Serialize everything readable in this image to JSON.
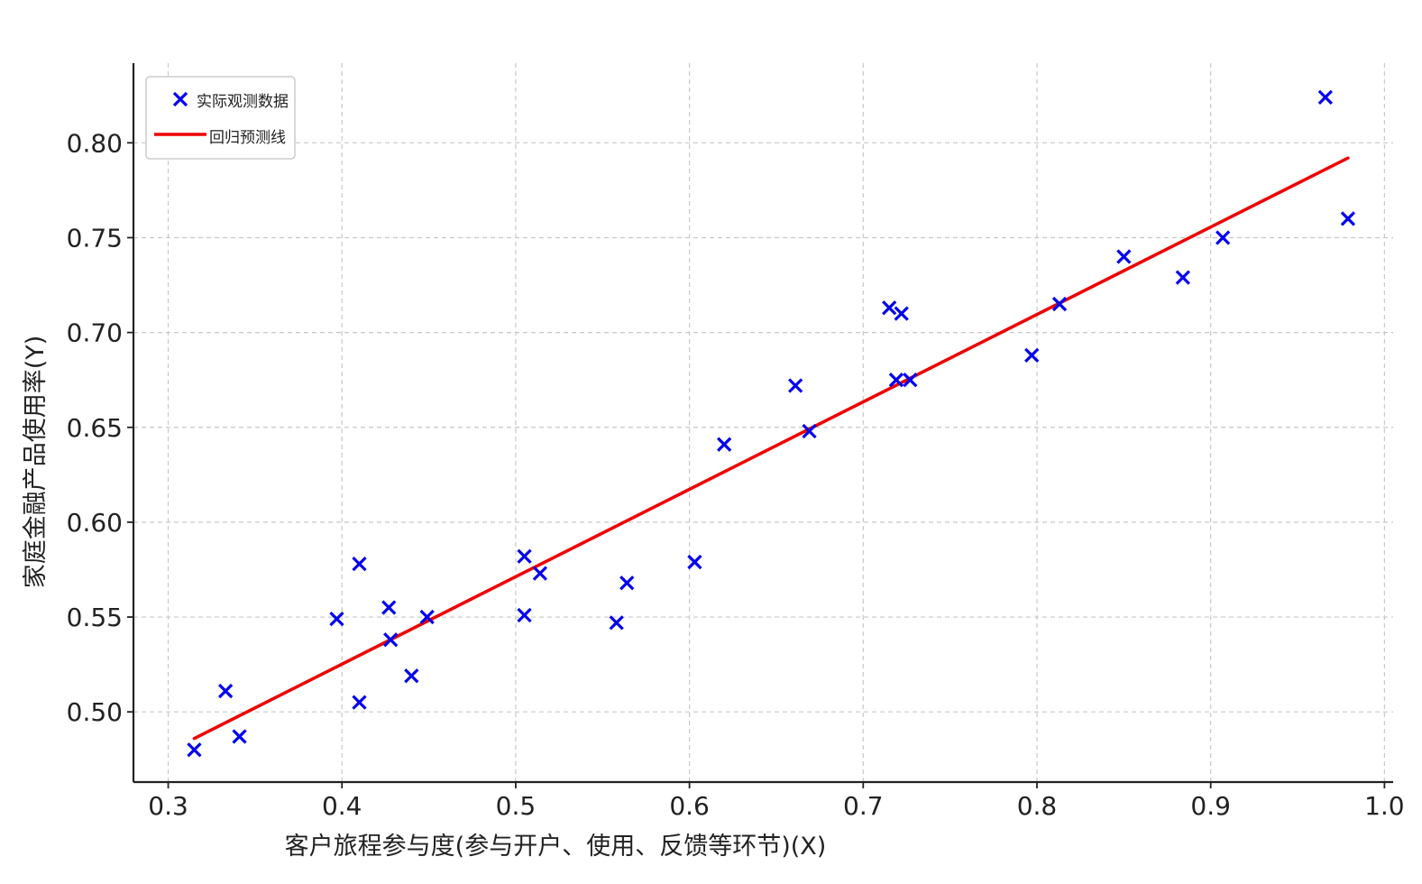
{
  "chart_data": {
    "type": "scatter",
    "title": "",
    "xlabel": "客户旅程参与度(参与开户、使用、反馈等环节)(X)",
    "ylabel": "家庭金融产品使用率(Y)",
    "xlim": [
      0.28,
      1.005
    ],
    "ylim": [
      0.463,
      0.842
    ],
    "x_ticks": [
      0.3,
      0.4,
      0.5,
      0.6,
      0.7,
      0.8,
      0.9,
      1.0
    ],
    "x_tick_labels": [
      "0.3",
      "0.4",
      "0.5",
      "0.6",
      "0.7",
      "0.8",
      "0.9",
      "1.0"
    ],
    "y_ticks": [
      0.5,
      0.55,
      0.6,
      0.65,
      0.7,
      0.75,
      0.8
    ],
    "y_tick_labels": [
      "0.50",
      "0.55",
      "0.60",
      "0.65",
      "0.70",
      "0.75",
      "0.80"
    ],
    "grid": true,
    "legend_position": "top-left",
    "series": [
      {
        "name": "实际观测数据",
        "kind": "scatter",
        "marker": "x",
        "color": "#0000ee",
        "points": [
          [
            0.315,
            0.48
          ],
          [
            0.333,
            0.511
          ],
          [
            0.341,
            0.487
          ],
          [
            0.397,
            0.549
          ],
          [
            0.41,
            0.578
          ],
          [
            0.41,
            0.505
          ],
          [
            0.427,
            0.555
          ],
          [
            0.428,
            0.538
          ],
          [
            0.44,
            0.519
          ],
          [
            0.449,
            0.55
          ],
          [
            0.505,
            0.582
          ],
          [
            0.505,
            0.551
          ],
          [
            0.514,
            0.573
          ],
          [
            0.558,
            0.547
          ],
          [
            0.564,
            0.568
          ],
          [
            0.603,
            0.579
          ],
          [
            0.62,
            0.641
          ],
          [
            0.661,
            0.672
          ],
          [
            0.669,
            0.648
          ],
          [
            0.715,
            0.713
          ],
          [
            0.719,
            0.675
          ],
          [
            0.722,
            0.71
          ],
          [
            0.727,
            0.675
          ],
          [
            0.797,
            0.688
          ],
          [
            0.813,
            0.715
          ],
          [
            0.85,
            0.74
          ],
          [
            0.884,
            0.729
          ],
          [
            0.907,
            0.75
          ],
          [
            0.966,
            0.824
          ],
          [
            0.979,
            0.76
          ]
        ]
      },
      {
        "name": "回归预测线",
        "kind": "line",
        "color": "#ee0000",
        "points": [
          [
            0.315,
            0.486
          ],
          [
            0.979,
            0.792
          ]
        ]
      }
    ]
  }
}
